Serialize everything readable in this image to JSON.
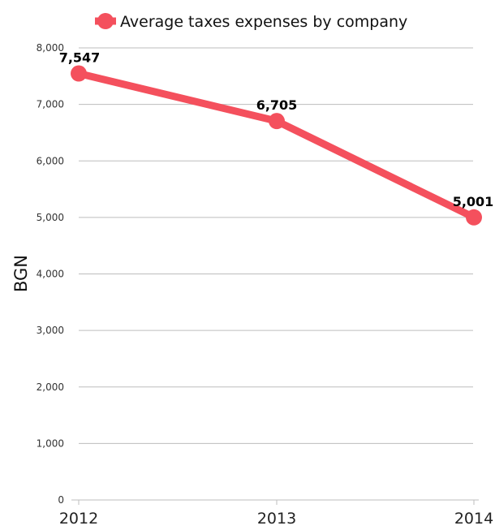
{
  "chart_data": {
    "type": "line",
    "categories": [
      "2012",
      "2013",
      "2014"
    ],
    "series": [
      {
        "name": "Average taxes expenses by company",
        "values": [
          7547,
          6705,
          5001
        ],
        "labels": [
          "7,547",
          "6,705",
          "5,001"
        ]
      }
    ],
    "xlabel": "",
    "ylabel": "BGN",
    "ylim": [
      0,
      8000
    ],
    "yticks": [
      0,
      1000,
      2000,
      3000,
      4000,
      5000,
      6000,
      7000,
      8000
    ],
    "ytick_labels": [
      "0",
      "1,000",
      "2,000",
      "3,000",
      "4,000",
      "5,000",
      "6,000",
      "7,000",
      "8,000"
    ],
    "grid": true,
    "legend_position": "top"
  },
  "colors": {
    "series": "#f4505d",
    "grid": "#bdbdbd"
  }
}
